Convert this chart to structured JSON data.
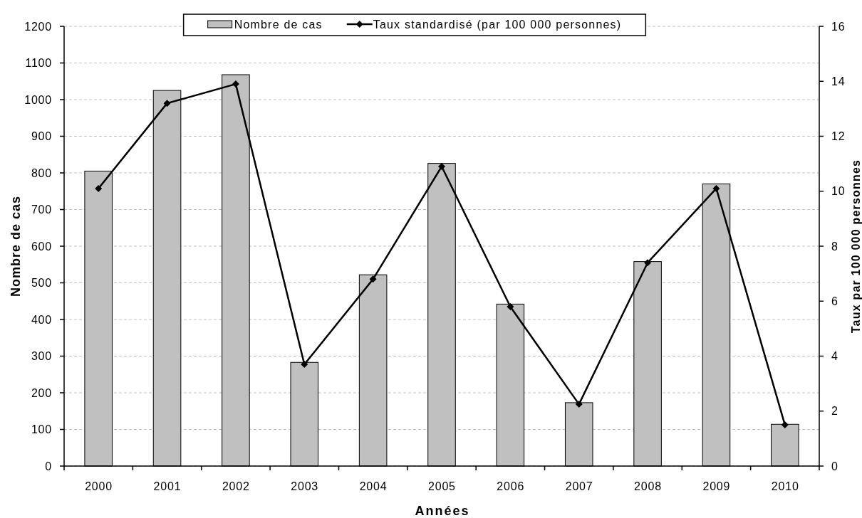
{
  "chart_data": {
    "type": "bar",
    "categories": [
      "2000",
      "2001",
      "2002",
      "2003",
      "2004",
      "2005",
      "2006",
      "2007",
      "2008",
      "2009",
      "2010"
    ],
    "xlabel": "Années",
    "ylabel": "Nombre de cas",
    "y2label": "Taux par 100 000 personnes",
    "series": [
      {
        "name": "Nombre de cas",
        "color": "#c0c0c0",
        "values": [
          805,
          1025,
          1068,
          283,
          522,
          826,
          442,
          173,
          558,
          770,
          114
        ]
      },
      {
        "name": "Taux standardisé (par 100 000 personnes)",
        "type": "line",
        "axis": "y2",
        "color": "#000000",
        "values": [
          10.1,
          13.2,
          13.9,
          3.7,
          6.8,
          10.9,
          5.8,
          2.25,
          7.4,
          10.1,
          1.5
        ]
      }
    ],
    "ylim": [
      0,
      1200
    ],
    "yticks": [
      0,
      100,
      200,
      300,
      400,
      500,
      600,
      700,
      800,
      900,
      1000,
      1100,
      1200
    ],
    "y2lim": [
      0,
      16
    ],
    "y2ticks": [
      0,
      2,
      4,
      6,
      8,
      10,
      12,
      14,
      16
    ],
    "grid": "y",
    "legend": "top",
    "marker": "diamond"
  }
}
